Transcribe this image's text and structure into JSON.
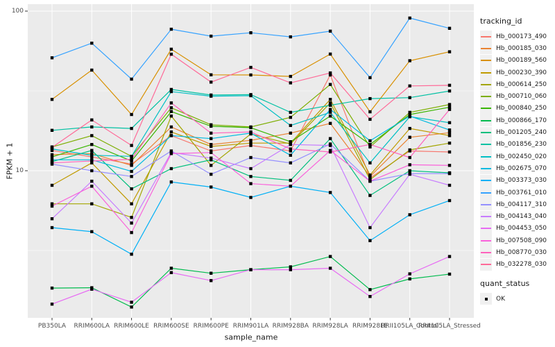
{
  "chart_data": {
    "type": "line",
    "title": "",
    "xlabel": "sample_name",
    "ylabel": "FPKM + 1",
    "y_scale": "log10",
    "y_tick_labels": [
      "100",
      "10"
    ],
    "y_tick_values": [
      100,
      10
    ],
    "ylim": [
      1.2,
      110
    ],
    "grid": true,
    "legend_position": "right",
    "panel_bg": "#EBEBEB",
    "grid_color": "#FFFFFF",
    "marker": {
      "shape": "square",
      "color": "#000000",
      "size": 4.4
    },
    "categories": [
      "PB350LA",
      "RRIM600LA",
      "RRIM600LE",
      "RRIM600SE",
      "RRIM600PE",
      "RRIM901LA",
      "RRIM928BA",
      "RRIM928LA",
      "RRIM928LE",
      "RRII105LA_Control",
      "RRII105LA_Stressed"
    ],
    "series": [
      {
        "name": "Hb_000173_490",
        "color": "#F8766D",
        "values": [
          13.4,
          12.2,
          11.0,
          16.6,
          13.3,
          14.4,
          13.3,
          39.8,
          9.0,
          13.3,
          13.1
        ]
      },
      {
        "name": "Hb_000185_030",
        "color": "#EA8331",
        "values": [
          12.6,
          12.8,
          10.8,
          18.8,
          14.6,
          15.5,
          17.2,
          19.8,
          9.2,
          16.2,
          17.3
        ]
      },
      {
        "name": "Hb_000189_560",
        "color": "#D89000",
        "values": [
          28.0,
          42.7,
          22.5,
          57.7,
          39.9,
          39.8,
          39.0,
          53.8,
          23.4,
          48.9,
          55.6
        ]
      },
      {
        "name": "Hb_000230_390",
        "color": "#C09B00",
        "values": [
          8.1,
          11.2,
          6.2,
          17.5,
          14.2,
          14.9,
          14.9,
          28.0,
          9.4,
          18.4,
          16.6
        ]
      },
      {
        "name": "Hb_000614_250",
        "color": "#A3A500",
        "values": [
          6.2,
          6.2,
          5.1,
          22.0,
          10.8,
          17.0,
          14.7,
          26.6,
          8.8,
          13.5,
          14.9
        ]
      },
      {
        "name": "Hb_000710_060",
        "color": "#7CAE00",
        "values": [
          14.1,
          16.6,
          12.3,
          24.8,
          19.4,
          18.8,
          21.6,
          34.7,
          14.1,
          23.2,
          26.0
        ]
      },
      {
        "name": "Hb_000840_250",
        "color": "#39B600",
        "values": [
          12.2,
          14.6,
          11.5,
          23.5,
          19.0,
          18.6,
          15.2,
          22.0,
          14.6,
          22.5,
          25.0
        ]
      },
      {
        "name": "Hb_000866_170",
        "color": "#00BB4E",
        "values": [
          1.84,
          1.85,
          1.4,
          2.45,
          2.28,
          2.4,
          2.5,
          2.9,
          1.8,
          2.1,
          2.25
        ]
      },
      {
        "name": "Hb_001205_240",
        "color": "#00BF7D",
        "values": [
          11.4,
          13.4,
          7.7,
          10.3,
          11.7,
          9.2,
          8.7,
          15.9,
          7.0,
          10.0,
          9.7
        ]
      },
      {
        "name": "Hb_001856_230",
        "color": "#00C1A3",
        "values": [
          17.9,
          18.8,
          18.4,
          32.3,
          29.8,
          30.0,
          23.2,
          25.7,
          28.3,
          28.7,
          31.6
        ]
      },
      {
        "name": "Hb_002450_020",
        "color": "#00BFC4",
        "values": [
          13.7,
          12.5,
          12.3,
          31.3,
          29.3,
          29.5,
          19.2,
          23.2,
          11.2,
          21.8,
          20.0
        ]
      },
      {
        "name": "Hb_002675_070",
        "color": "#00BAE0",
        "values": [
          11.7,
          11.7,
          9.9,
          16.6,
          15.9,
          17.2,
          12.5,
          24.2,
          15.4,
          22.0,
          18.0
        ]
      },
      {
        "name": "Hb_003373_030",
        "color": "#00B0F6",
        "values": [
          4.4,
          4.15,
          3.0,
          8.5,
          7.9,
          6.8,
          8.0,
          7.3,
          3.65,
          5.3,
          6.5
        ]
      },
      {
        "name": "Hb_003761_010",
        "color": "#35A2FF",
        "values": [
          51.0,
          63.0,
          37.5,
          77.0,
          69.7,
          73.2,
          69.0,
          74.9,
          38.3,
          90.5,
          78.0
        ]
      },
      {
        "name": "Hb_004117_310",
        "color": "#9590FF",
        "values": [
          11.0,
          10.0,
          9.2,
          13.3,
          9.5,
          12.1,
          11.2,
          14.7,
          8.6,
          9.6,
          9.6
        ]
      },
      {
        "name": "Hb_004143_040",
        "color": "#C77CFF",
        "values": [
          5.0,
          8.6,
          4.7,
          13.0,
          12.0,
          10.3,
          14.6,
          14.4,
          4.4,
          9.5,
          8.1
        ]
      },
      {
        "name": "Hb_004453_050",
        "color": "#E76BF3",
        "values": [
          1.46,
          1.81,
          1.5,
          2.3,
          2.05,
          2.4,
          2.4,
          2.45,
          1.63,
          2.26,
          2.9
        ]
      },
      {
        "name": "Hb_007508_090",
        "color": "#FA62DB",
        "values": [
          6.0,
          8.0,
          4.1,
          12.8,
          13.0,
          8.3,
          8.0,
          13.4,
          8.6,
          10.9,
          10.8
        ]
      },
      {
        "name": "Hb_008770_030",
        "color": "#FF62BC",
        "values": [
          11.2,
          11.5,
          11.8,
          26.6,
          17.2,
          17.5,
          13.7,
          13.1,
          14.6,
          12.1,
          24.2
        ]
      },
      {
        "name": "Hb_032278_030",
        "color": "#FF6A98",
        "values": [
          14.0,
          20.8,
          14.4,
          53.7,
          35.9,
          44.4,
          35.5,
          41.0,
          21.0,
          34.0,
          34.3
        ]
      }
    ],
    "legend": {
      "tracking_title": "tracking_id",
      "quant_title": "quant_status",
      "quant_items": [
        {
          "label": "OK"
        }
      ]
    }
  }
}
